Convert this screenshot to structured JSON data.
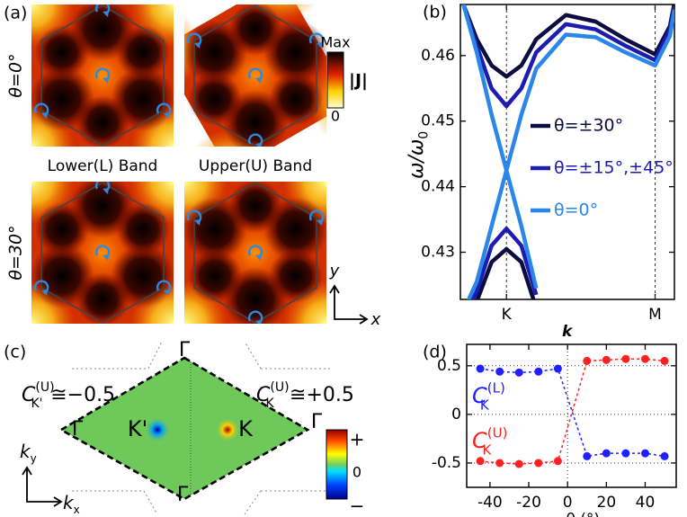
{
  "panel_labels": {
    "a": "(a)",
    "b": "(b)",
    "c": "(c)",
    "d": "(d)"
  },
  "panel_a": {
    "rows": [
      "θ=0°",
      "θ=30°"
    ],
    "columns": [
      "Lower(L) Band",
      "Upper(U) Band"
    ],
    "colorbar": {
      "max": "Max",
      "label": "|J|",
      "min": "0"
    },
    "axes": {
      "y": "y",
      "x": "x"
    }
  },
  "panel_c": {
    "gamma": "Γ",
    "valley_left": "K'",
    "valley_right": "K",
    "chern_left": {
      "base": "C",
      "sup": "(U)",
      "sub": "K'",
      "rel": "≅−0.5"
    },
    "chern_right": {
      "base": "C",
      "sup": "(U)",
      "sub": "K",
      "rel": "≅+0.5"
    },
    "colorbar": {
      "max": "+",
      "mid": "0",
      "min": "−"
    },
    "axes": {
      "y": {
        "base": "k",
        "sub": "y"
      },
      "x": {
        "base": "k",
        "sub": "x"
      }
    }
  },
  "chart_data": [
    {
      "type": "line",
      "xlabel": {
        "base": "k"
      },
      "ylabel": {
        "base": "ω/ω",
        "sub": "0"
      },
      "x": [
        -0.31,
        -0.2,
        -0.1,
        0,
        0.1,
        0.2,
        0.4,
        0.6,
        0.8,
        1.0,
        1.1,
        1.13
      ],
      "xlim": [
        -0.31,
        1.13
      ],
      "xticks": [
        {
          "value": 0,
          "label": "K"
        },
        {
          "value": 1,
          "label": "M"
        }
      ],
      "xgrid": true,
      "ylim": [
        0.4228,
        0.4678
      ],
      "yticks": [
        0.43,
        0.44,
        0.45,
        0.46
      ],
      "legend": "center right",
      "series": [
        {
          "name": "θ=±30°",
          "color": "#0c0c40",
          "values": [
            0.469,
            0.4625,
            0.4585,
            0.4568,
            0.4585,
            0.4625,
            0.4662,
            0.4652,
            0.4625,
            0.4602,
            0.4645,
            0.468
          ]
        },
        {
          "name": "θ=±15°,±45°",
          "color": "#1c1cb0",
          "values": [
            0.4692,
            0.4615,
            0.455,
            0.4523,
            0.455,
            0.4605,
            0.4648,
            0.464,
            0.4615,
            0.4593,
            0.464,
            0.4675
          ]
        },
        {
          "name": "θ=0°",
          "color": "#2a86e8",
          "values": [
            0.4695,
            0.4605,
            0.451,
            0.4425,
            0.451,
            0.458,
            0.4632,
            0.4628,
            0.4605,
            0.4585,
            0.463,
            0.467
          ]
        },
        {
          "color": "#0c0c40",
          "values": [
            0.418,
            0.4225,
            0.4285,
            0.4305,
            0.4285,
            0.4215,
            null,
            null,
            null,
            null,
            null,
            null
          ]
        },
        {
          "color": "#1c1cb0",
          "values": [
            0.419,
            0.424,
            0.431,
            0.4336,
            0.431,
            0.4235,
            null,
            null,
            null,
            null,
            null,
            null
          ]
        },
        {
          "color": "#2a86e8",
          "values": [
            0.42,
            0.4255,
            0.434,
            0.4425,
            0.434,
            0.4245,
            null,
            null,
            null,
            null,
            null,
            null
          ]
        }
      ]
    },
    {
      "type": "line",
      "xlabel": {
        "base": "θ (°)"
      },
      "x": [
        -45,
        -35,
        -25,
        -15,
        -5,
        10,
        20,
        30,
        40,
        50
      ],
      "xlim": [
        -52,
        56
      ],
      "xticks": [
        -40,
        -20,
        0,
        20,
        40
      ],
      "ylim": [
        -0.75,
        0.72
      ],
      "yticks": [
        -0.5,
        0,
        0.5
      ],
      "grid": true,
      "vline": 0,
      "markers": true,
      "linestyle": "dashed",
      "series": [
        {
          "color": "#2020ff",
          "values": [
            0.47,
            0.44,
            0.43,
            0.44,
            0.47,
            -0.43,
            -0.4,
            -0.4,
            -0.4,
            -0.43
          ]
        },
        {
          "color": "#ff2020",
          "values": [
            -0.48,
            -0.5,
            -0.51,
            -0.5,
            -0.48,
            0.55,
            0.56,
            0.57,
            0.57,
            0.55
          ]
        }
      ],
      "annotations": [
        {
          "base": "C",
          "sup": "(L)",
          "sub": "K",
          "color": "#2020ff"
        },
        {
          "base": "C",
          "sup": "(U)",
          "sub": "K",
          "color": "#ff2020"
        }
      ]
    }
  ]
}
